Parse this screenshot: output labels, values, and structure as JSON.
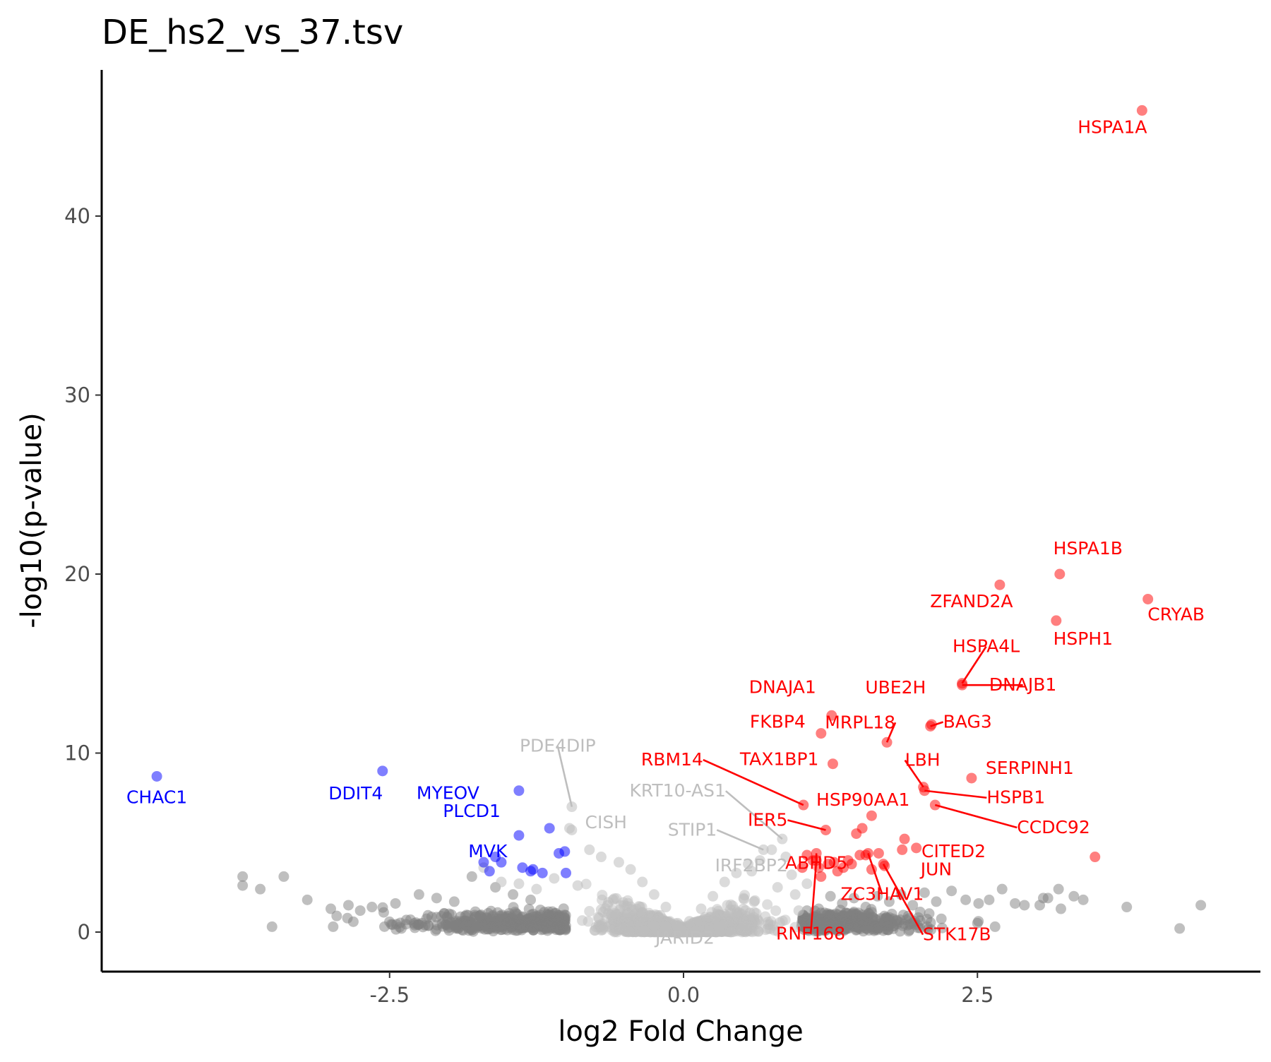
{
  "chart_data": {
    "type": "scatter",
    "title": "DE_hs2_vs_37.tsv",
    "xlabel": "log2 Fold Change",
    "ylabel": "-log10(p-value)",
    "xlim": [
      -4.96,
      4.96
    ],
    "ylim": [
      -2.2,
      48.6
    ],
    "xticks": [
      -2.5,
      0.0,
      2.5
    ],
    "xtick_labels": [
      "-2.5",
      "0.0",
      "2.5"
    ],
    "yticks": [
      0,
      10,
      20,
      30,
      40
    ],
    "ytick_labels": [
      "0",
      "10",
      "20",
      "30",
      "40"
    ],
    "grid": false,
    "legend": "none",
    "colors": {
      "up": "#ff0000",
      "down": "#0000ff",
      "ns_label": "#bebebe",
      "ns_strong": "#7f7f7f",
      "ns_light": "#bebebe"
    },
    "labeled_points": [
      {
        "label": "HSPA1A",
        "x": 3.9,
        "y": 45.9,
        "group": "up"
      },
      {
        "label": "HSPA1B",
        "x": 3.2,
        "y": 20.0,
        "group": "up"
      },
      {
        "label": "ZFAND2A",
        "x": 2.69,
        "y": 19.4,
        "group": "up"
      },
      {
        "label": "CRYAB",
        "x": 3.95,
        "y": 18.6,
        "group": "up"
      },
      {
        "label": "HSPH1",
        "x": 3.17,
        "y": 17.4,
        "group": "up"
      },
      {
        "label": "HSPA4L",
        "x": 2.37,
        "y": 13.9,
        "group": "up"
      },
      {
        "label": "DNAJB1",
        "x": 2.37,
        "y": 13.8,
        "group": "up"
      },
      {
        "label": "DNAJA1",
        "x": 1.26,
        "y": 12.1,
        "group": "up"
      },
      {
        "label": "UBE2H",
        "x": 2.11,
        "y": 11.6,
        "group": "up"
      },
      {
        "label": "BAG3",
        "x": 2.1,
        "y": 11.5,
        "group": "up"
      },
      {
        "label": "FKBP4",
        "x": 1.17,
        "y": 11.1,
        "group": "up"
      },
      {
        "label": "MRPL18",
        "x": 1.73,
        "y": 10.6,
        "group": "up"
      },
      {
        "label": "TAX1BP1",
        "x": 1.27,
        "y": 9.4,
        "group": "up"
      },
      {
        "label": "SERPINH1",
        "x": 2.45,
        "y": 8.6,
        "group": "up"
      },
      {
        "label": "LBH",
        "x": 2.04,
        "y": 8.1,
        "group": "up"
      },
      {
        "label": "HSPB1",
        "x": 2.05,
        "y": 7.9,
        "group": "up"
      },
      {
        "label": "RBM14",
        "x": 1.02,
        "y": 7.1,
        "group": "up"
      },
      {
        "label": "HSP90AA1",
        "x": 1.6,
        "y": 6.5,
        "group": "up"
      },
      {
        "label": "CCDC92",
        "x": 2.14,
        "y": 7.1,
        "group": "up"
      },
      {
        "label": "IER5",
        "x": 1.21,
        "y": 5.7,
        "group": "up"
      },
      {
        "label": "CITED2",
        "x": 1.88,
        "y": 5.2,
        "group": "up"
      },
      {
        "label": "JUN",
        "x": 1.86,
        "y": 4.6,
        "group": "up"
      },
      {
        "label": "ABHD5",
        "x": 1.13,
        "y": 4.4,
        "group": "up"
      },
      {
        "label": "ZC3HAV1",
        "x": 1.57,
        "y": 4.4,
        "group": "up"
      },
      {
        "label": "RNF168",
        "x": 1.13,
        "y": 4.0,
        "group": "up"
      },
      {
        "label": "STK17B",
        "x": 1.7,
        "y": 3.8,
        "group": "up"
      },
      {
        "label": "CHAC1",
        "x": -4.48,
        "y": 8.7,
        "group": "down"
      },
      {
        "label": "DDIT4",
        "x": -2.56,
        "y": 9.0,
        "group": "down"
      },
      {
        "label": "MYEOV",
        "x": -1.4,
        "y": 7.9,
        "group": "down"
      },
      {
        "label": "PLCD1",
        "x": -1.4,
        "y": 5.4,
        "group": "down"
      },
      {
        "label": "MVK",
        "x": -1.65,
        "y": 3.4,
        "group": "down"
      },
      {
        "label": "PDE4DIP",
        "x": -0.95,
        "y": 7.0,
        "group": "ns_label"
      },
      {
        "label": "CISH",
        "x": -0.97,
        "y": 5.8,
        "group": "ns_label"
      },
      {
        "label": "KRT10-AS1",
        "x": 0.84,
        "y": 5.2,
        "group": "ns_label"
      },
      {
        "label": "STIP1",
        "x": 0.68,
        "y": 4.6,
        "group": "ns_label"
      },
      {
        "label": "IRF2BP2",
        "x": 0.58,
        "y": 3.4,
        "group": "ns_label"
      },
      {
        "label": "JARID2",
        "x": 0.3,
        "y": 0.3,
        "group": "ns_label"
      }
    ],
    "other_up_points": [
      [
        3.5,
        4.2
      ],
      [
        1.98,
        4.7
      ],
      [
        1.71,
        3.7
      ],
      [
        1.66,
        4.4
      ],
      [
        1.55,
        4.3
      ],
      [
        1.52,
        5.8
      ],
      [
        1.47,
        5.5
      ],
      [
        1.4,
        4.0
      ],
      [
        1.36,
        3.6
      ],
      [
        1.31,
        3.4
      ],
      [
        1.23,
        3.8
      ],
      [
        1.17,
        3.1
      ],
      [
        1.1,
        4.0
      ],
      [
        1.05,
        4.3
      ],
      [
        1.01,
        3.6
      ],
      [
        1.43,
        3.8
      ],
      [
        1.28,
        3.9
      ],
      [
        1.6,
        3.5
      ],
      [
        1.5,
        4.3
      ],
      [
        1.15,
        3.6
      ]
    ],
    "other_down_points": [
      [
        -1.6,
        4.2
      ],
      [
        -1.55,
        3.9
      ],
      [
        -1.37,
        3.6
      ],
      [
        -1.28,
        3.5
      ],
      [
        -1.2,
        3.3
      ],
      [
        -1.14,
        5.8
      ],
      [
        -1.06,
        4.4
      ],
      [
        -1.01,
        4.5
      ],
      [
        -1.0,
        3.3
      ],
      [
        -1.7,
        3.9
      ],
      [
        -1.3,
        3.4
      ]
    ],
    "ns_strong_points": [
      [
        4.4,
        1.5
      ],
      [
        4.22,
        0.2
      ],
      [
        3.77,
        1.4
      ],
      [
        3.4,
        1.8
      ],
      [
        3.32,
        2.0
      ],
      [
        3.19,
        2.4
      ],
      [
        3.06,
        1.9
      ],
      [
        3.03,
        1.5
      ],
      [
        2.82,
        1.6
      ],
      [
        2.71,
        2.4
      ],
      [
        2.6,
        1.8
      ],
      [
        2.51,
        1.6
      ],
      [
        2.4,
        1.8
      ],
      [
        2.28,
        2.3
      ],
      [
        2.15,
        1.7
      ],
      [
        2.05,
        2.2
      ],
      [
        1.95,
        1.5
      ],
      [
        1.85,
        2.1
      ],
      [
        1.75,
        1.7
      ],
      [
        1.65,
        2.0
      ],
      [
        1.55,
        1.4
      ],
      [
        1.45,
        1.9
      ],
      [
        1.35,
        1.6
      ],
      [
        1.25,
        2.0
      ],
      [
        1.15,
        1.3
      ],
      [
        1.05,
        1.2
      ],
      [
        2.65,
        0.3
      ],
      [
        2.5,
        0.5
      ],
      [
        3.1,
        1.9
      ],
      [
        3.21,
        1.3
      ],
      [
        2.9,
        1.5
      ],
      [
        -3.75,
        3.1
      ],
      [
        -3.6,
        2.4
      ],
      [
        -3.4,
        3.1
      ],
      [
        -3.2,
        1.8
      ],
      [
        -3.0,
        1.3
      ],
      [
        -2.85,
        1.5
      ],
      [
        -2.65,
        1.4
      ],
      [
        -2.45,
        1.6
      ],
      [
        -2.25,
        2.1
      ],
      [
        -2.1,
        1.9
      ],
      [
        -1.95,
        1.7
      ],
      [
        -1.8,
        3.1
      ],
      [
        -1.6,
        2.5
      ],
      [
        -1.45,
        2.1
      ],
      [
        -1.3,
        1.8
      ],
      [
        -3.75,
        2.6
      ],
      [
        -3.5,
        0.3
      ],
      [
        -2.98,
        0.3
      ],
      [
        -2.4,
        0.2
      ],
      [
        -1.85,
        0.4
      ],
      [
        -1.5,
        0.5
      ],
      [
        -2.75,
        1.2
      ],
      [
        -2.55,
        1.1
      ],
      [
        -2.95,
        0.9
      ]
    ],
    "ns_light_points": [
      [
        -0.95,
        5.7
      ],
      [
        -0.8,
        4.6
      ],
      [
        -0.7,
        4.2
      ],
      [
        -0.55,
        3.9
      ],
      [
        -0.45,
        3.5
      ],
      [
        -0.35,
        2.8
      ],
      [
        -0.25,
        2.1
      ],
      [
        -0.15,
        1.4
      ],
      [
        -0.05,
        0.5
      ],
      [
        0.05,
        0.6
      ],
      [
        0.15,
        1.3
      ],
      [
        0.25,
        2.0
      ],
      [
        0.35,
        2.8
      ],
      [
        0.45,
        3.3
      ],
      [
        0.55,
        3.8
      ],
      [
        0.65,
        4.0
      ],
      [
        0.75,
        4.6
      ],
      [
        0.87,
        4.2
      ],
      [
        0.92,
        3.2
      ],
      [
        -1.7,
        3.6
      ],
      [
        -1.55,
        2.8
      ],
      [
        -1.4,
        2.7
      ],
      [
        -1.25,
        2.4
      ],
      [
        -1.1,
        3.0
      ],
      [
        -0.9,
        2.6
      ],
      [
        0.95,
        2.1
      ],
      [
        0.8,
        2.5
      ],
      [
        0.6,
        1.7
      ],
      [
        -0.6,
        1.8
      ],
      [
        1.05,
        2.7
      ],
      [
        0.98,
        1.2
      ]
    ]
  }
}
